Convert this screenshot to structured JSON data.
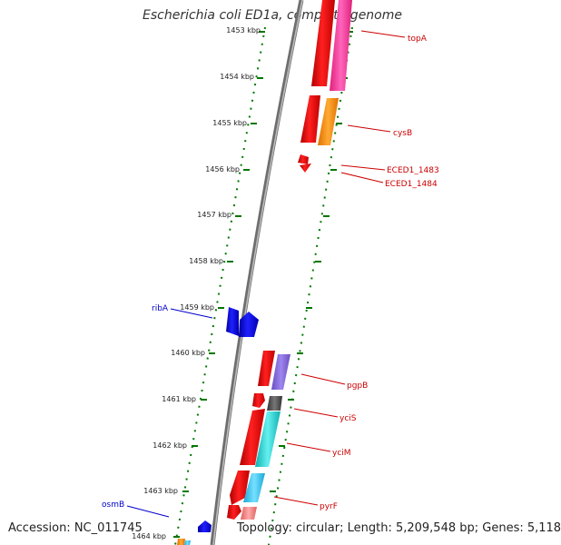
{
  "title": "Escherichia coli ED1a, complete genome",
  "footer": {
    "accession": "Accession: NC_011745",
    "summary": "Topology: circular; Length: 5,209,548 bp; Genes: 5,118"
  },
  "ticks": [
    "1453 kbp",
    "1454 kbp",
    "1455 kbp",
    "1456 kbp",
    "1457 kbp",
    "1458 kbp",
    "1459 kbp",
    "1460 kbp",
    "1461 kbp",
    "1462 kbp",
    "1463 kbp",
    "1464 kbp"
  ],
  "genes_forward": [
    {
      "label": "topA",
      "color": "#cc0000"
    },
    {
      "label": "cysB",
      "color": "#cc0000"
    },
    {
      "label": "ECED1_1483",
      "color": "#cc0000"
    },
    {
      "label": "ECED1_1484",
      "color": "#cc0000"
    },
    {
      "label": "pgpB",
      "color": "#cc0000"
    },
    {
      "label": "yciS",
      "color": "#cc0000"
    },
    {
      "label": "yciM",
      "color": "#cc0000"
    },
    {
      "label": "pyrF",
      "color": "#cc0000"
    }
  ],
  "genes_reverse": [
    {
      "label": "ribA",
      "color": "#0000cc"
    },
    {
      "label": "osmB",
      "color": "#0000cc"
    }
  ],
  "colors": {
    "forward_cds": "#ff0000",
    "reverse_cds": "#0000ff",
    "backbone": "#808080",
    "ticks": "#007700",
    "category_pink": "#ff3399",
    "category_orange": "#ff8c00",
    "category_purple": "#8866dd",
    "category_gray": "#555555",
    "category_cyan": "#22cccc",
    "category_lightcyan": "#33ccee",
    "category_salmon": "#ff8888"
  }
}
